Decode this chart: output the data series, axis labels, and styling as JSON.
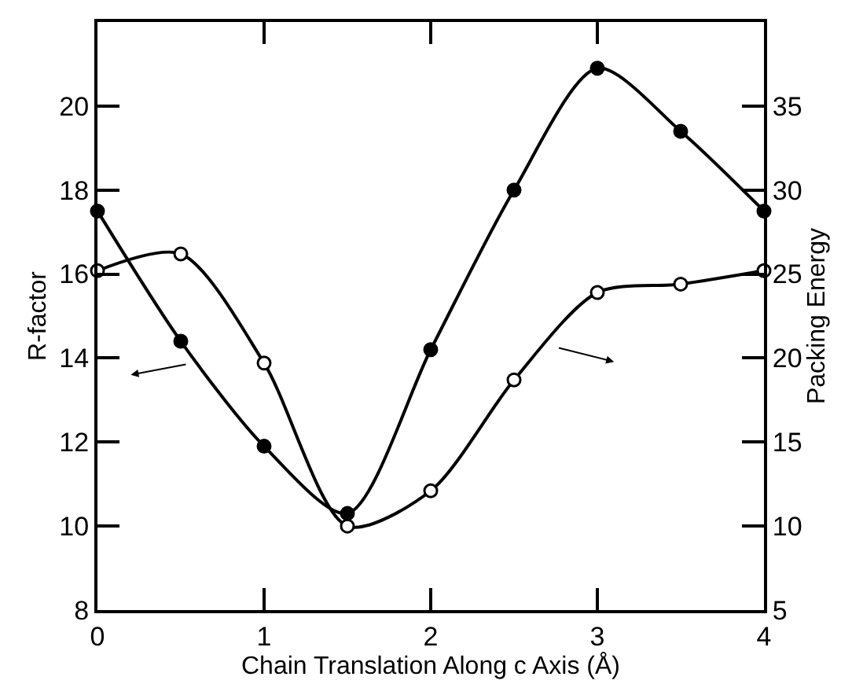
{
  "chart_data": {
    "type": "line",
    "xlabel": "Chain Translation Along c Axis (Å)",
    "ylabel": "R-factor",
    "y2label": "Packing Energy",
    "x": [
      0,
      0.5,
      1,
      1.5,
      2,
      2.5,
      3,
      3.5,
      4
    ],
    "series": [
      {
        "color": "#000000",
        "values": [
          17.5,
          14.4,
          11.9,
          10.3,
          14.2,
          18.0,
          20.9,
          19.4,
          17.5
        ]
      },
      {
        "color": "#000000",
        "axis": "y2",
        "values": [
          25.2,
          26.2,
          19.7,
          10.0,
          12.1,
          18.7,
          23.9,
          24.4,
          25.2
        ]
      }
    ],
    "xlim": [
      0,
      4
    ],
    "xticks": [
      0,
      1,
      2,
      3,
      4
    ],
    "ylim": [
      8,
      22
    ],
    "yticks": [
      8,
      10,
      12,
      14,
      16,
      18,
      20
    ],
    "y2lim": [
      5,
      40
    ],
    "y2ticks": [
      5,
      10,
      15,
      20,
      25,
      30,
      35
    ],
    "marker": "circle",
    "legend": false
  }
}
